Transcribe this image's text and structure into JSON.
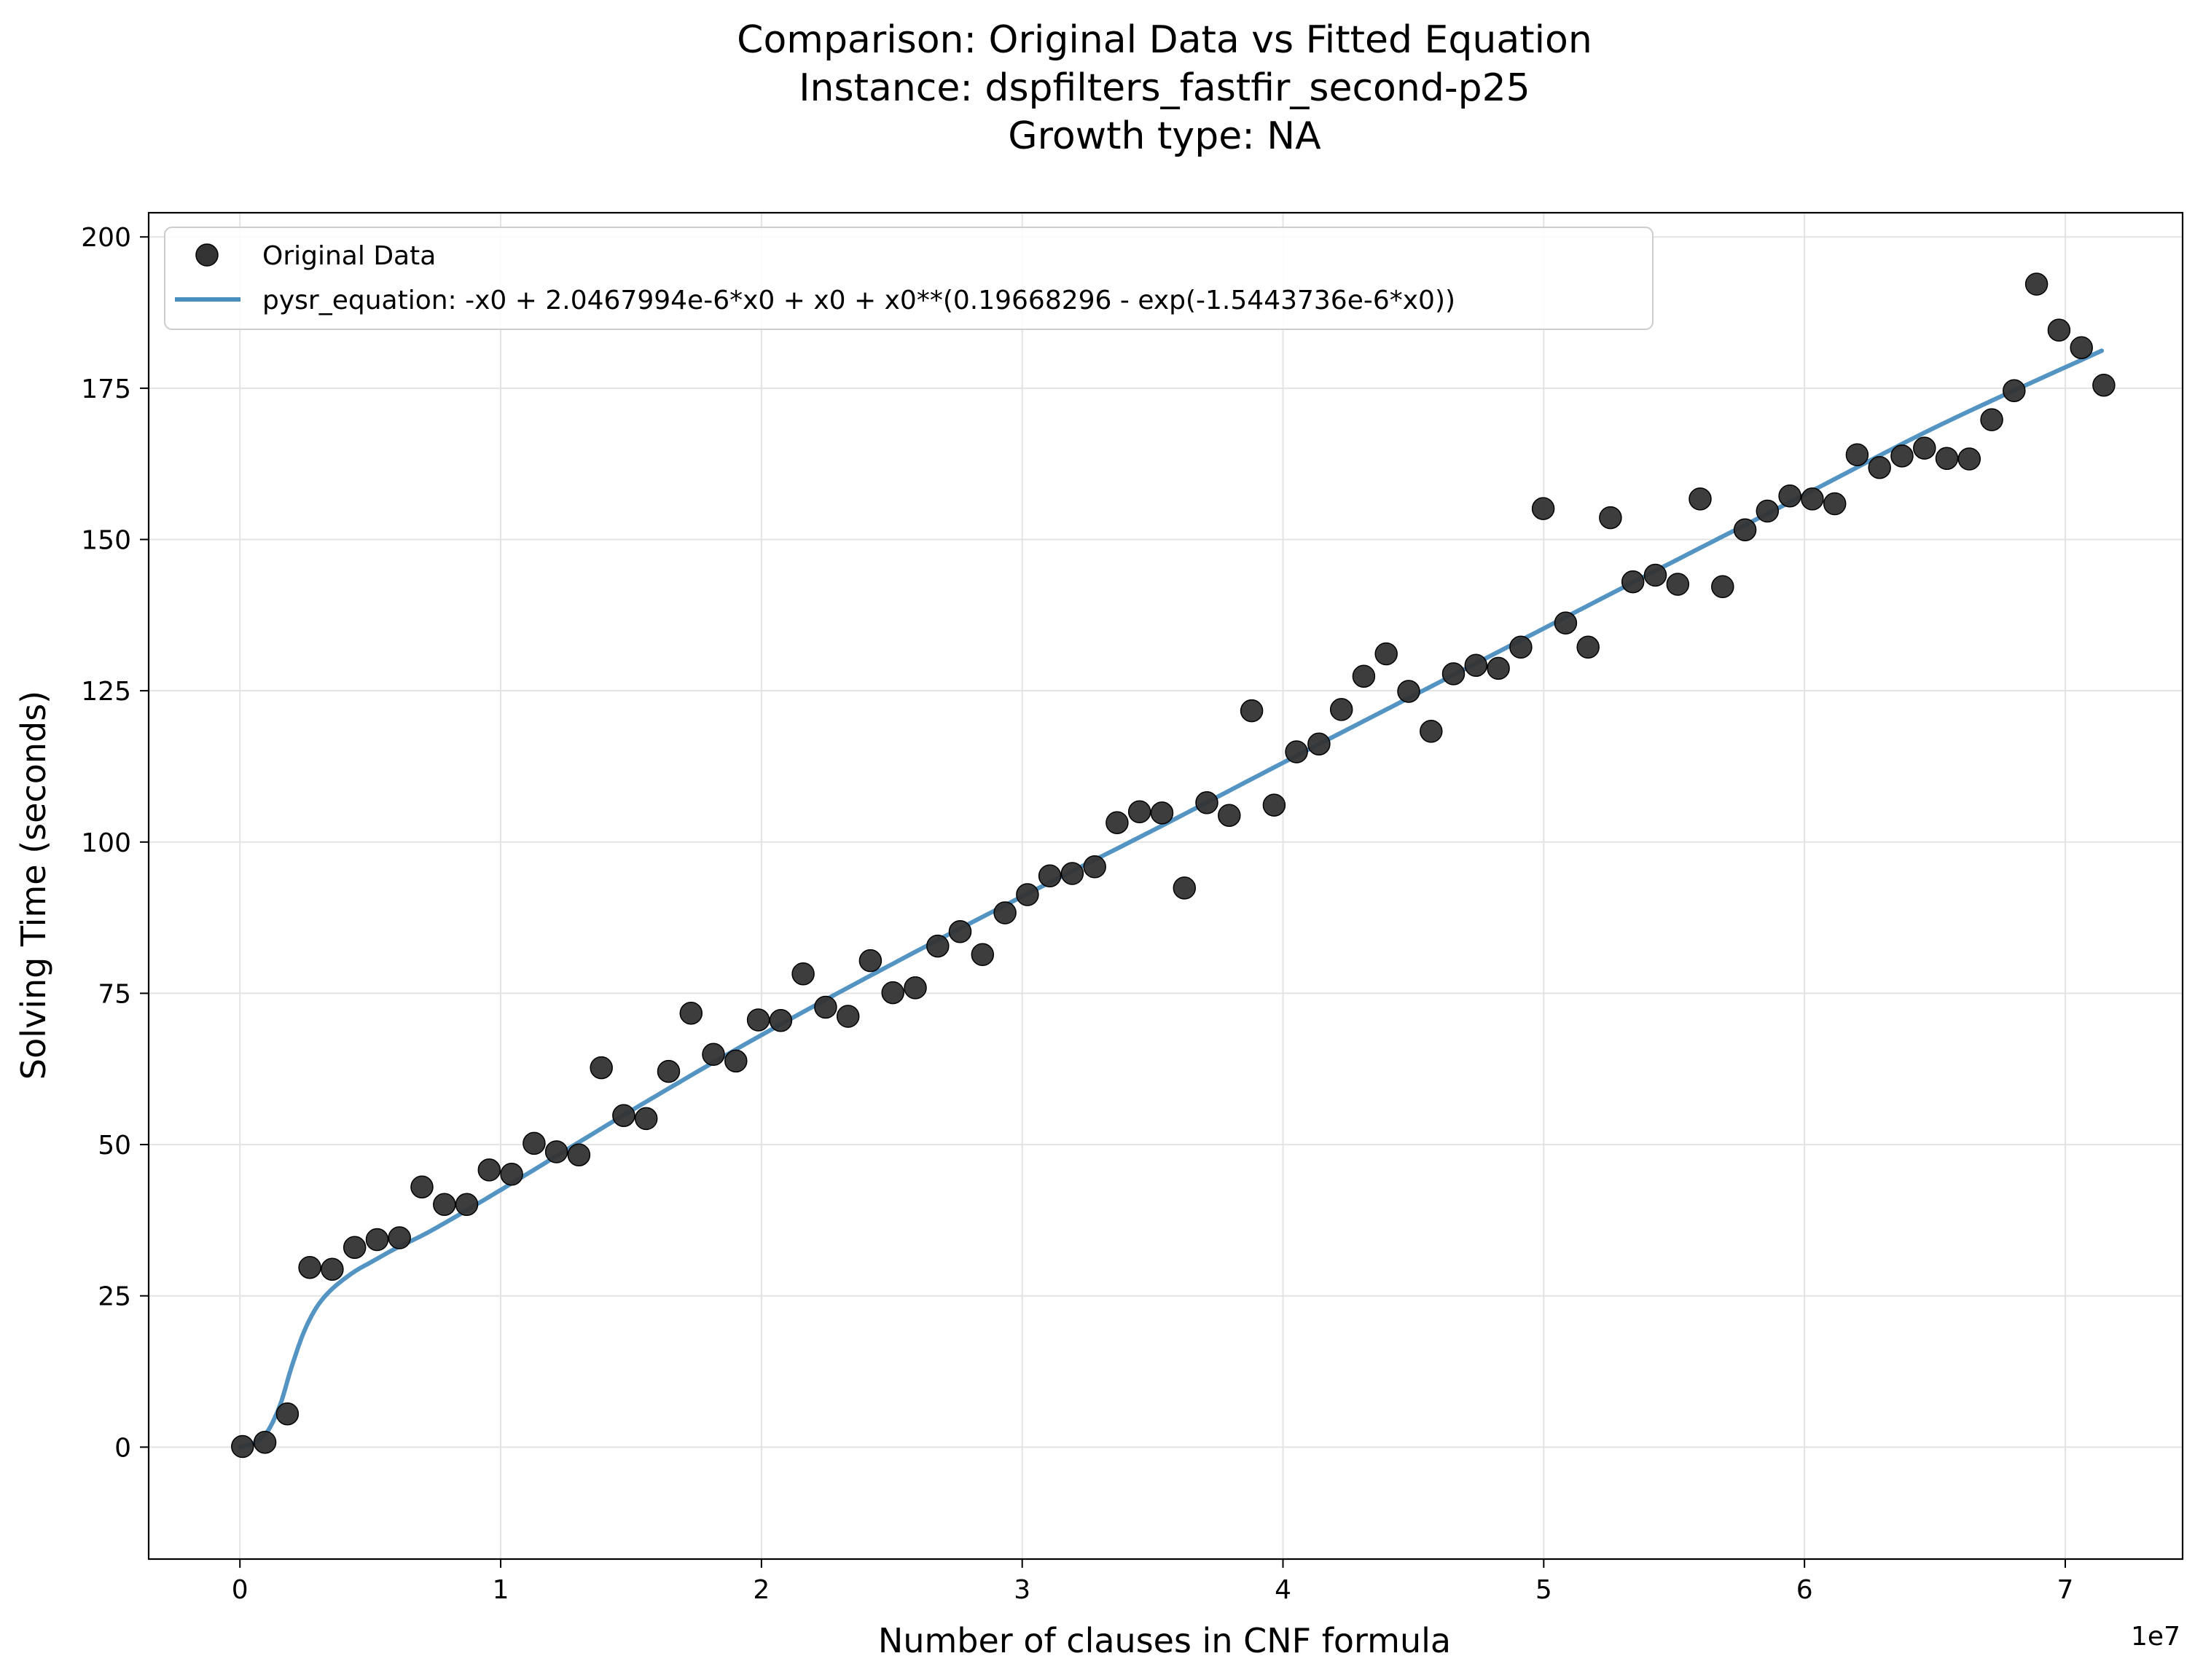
{
  "chart_data": {
    "type": "scatter",
    "title_lines": [
      "Comparison: Original Data vs Fitted Equation",
      "Instance: dspfilters_fastfir_second-p25",
      "Growth type: NA"
    ],
    "xlabel": "Number of clauses in CNF formula",
    "ylabel": "Solving Time (seconds)",
    "x_offset_label": "1e7",
    "xlim": [
      -3500000,
      74500000
    ],
    "ylim": [
      -18.5,
      204
    ],
    "x_ticks": [
      {
        "value": 0,
        "label": "0"
      },
      {
        "value": 10000000,
        "label": "1"
      },
      {
        "value": 20000000,
        "label": "2"
      },
      {
        "value": 30000000,
        "label": "3"
      },
      {
        "value": 40000000,
        "label": "4"
      },
      {
        "value": 50000000,
        "label": "5"
      },
      {
        "value": 60000000,
        "label": "6"
      },
      {
        "value": 70000000,
        "label": "7"
      }
    ],
    "y_ticks": [
      {
        "value": 0,
        "label": "0"
      },
      {
        "value": 25,
        "label": "25"
      },
      {
        "value": 50,
        "label": "50"
      },
      {
        "value": 75,
        "label": "75"
      },
      {
        "value": 100,
        "label": "100"
      },
      {
        "value": 125,
        "label": "125"
      },
      {
        "value": 150,
        "label": "150"
      },
      {
        "value": 175,
        "label": "175"
      },
      {
        "value": 200,
        "label": "200"
      }
    ],
    "grid": true,
    "legend_position": "upper-left",
    "series": [
      {
        "name": "Original Data",
        "kind": "scatter",
        "color": "#333333",
        "x": [
          100000,
          960000,
          1820000,
          2680000,
          3540000,
          4400000,
          5260000,
          6120000,
          6980000,
          7840000,
          8700000,
          9560000,
          10420000,
          11280000,
          12140000,
          13000000,
          13860000,
          14720000,
          15580000,
          16440000,
          17300000,
          18160000,
          19020000,
          19880000,
          20740000,
          21600000,
          22460000,
          23320000,
          24180000,
          25040000,
          25900000,
          26760000,
          27620000,
          28480000,
          29340000,
          30200000,
          31060000,
          31920000,
          32780000,
          33640000,
          34500000,
          35360000,
          36220000,
          37080000,
          37940000,
          38800000,
          39660000,
          40520000,
          41380000,
          42240000,
          43100000,
          43960000,
          44820000,
          45680000,
          46540000,
          47400000,
          48260000,
          49120000,
          49980000,
          50840000,
          51700000,
          52560000,
          53420000,
          54280000,
          55140000,
          56000000,
          56860000,
          57720000,
          58580000,
          59440000,
          60300000,
          61160000,
          62020000,
          62880000,
          63740000,
          64600000,
          65460000,
          66320000,
          67180000,
          68040000,
          68900000,
          69760000,
          70620000,
          71480000
        ],
        "y": [
          0.1,
          0.8,
          5.5,
          29.7,
          29.4,
          33.0,
          34.3,
          34.6,
          43.0,
          40.1,
          40.1,
          45.8,
          45.1,
          50.2,
          48.8,
          48.3,
          62.7,
          54.8,
          54.3,
          62.1,
          71.7,
          64.9,
          63.8,
          70.6,
          70.5,
          78.2,
          72.7,
          71.2,
          80.4,
          75.1,
          75.9,
          82.8,
          85.2,
          81.4,
          88.3,
          91.3,
          94.4,
          94.8,
          95.9,
          103.2,
          105.0,
          104.8,
          92.4,
          106.5,
          104.4,
          121.7,
          106.1,
          114.9,
          116.2,
          121.9,
          127.4,
          131.1,
          124.9,
          118.3,
          127.8,
          129.2,
          128.7,
          132.2,
          155.1,
          136.2,
          132.2,
          153.6,
          143.0,
          144.1,
          142.6,
          156.7,
          142.2,
          151.6,
          154.7,
          157.2,
          156.7,
          155.9,
          164.0,
          161.9,
          163.8,
          165.1,
          163.4,
          163.3,
          169.8,
          174.6,
          192.2,
          184.6,
          181.7,
          175.5
        ]
      },
      {
        "name": "pysr_equation: -x0 + 2.0467994e-6*x0 + x0 + x0**(0.19668296 - exp(-1.5443736e-6*x0))",
        "kind": "line",
        "color": "#4a8ec0",
        "x": [
          0,
          500000,
          1000000,
          1500000,
          2000000,
          2500000,
          3000000,
          3500000,
          4000000,
          4500000,
          5000000,
          6000000,
          7000000,
          8000000,
          10000000,
          15000000,
          20000000,
          25000000,
          30000000,
          35000000,
          40000000,
          45000000,
          50000000,
          55000000,
          60000000,
          65000000,
          71400000
        ],
        "y": [
          0,
          0.6,
          2.3,
          6.5,
          13.5,
          19.5,
          23.5,
          26.0,
          27.8,
          29.3,
          30.5,
          32.9,
          35.0,
          37.4,
          42.5,
          55.6,
          68.1,
          79.8,
          91.0,
          101.9,
          113.1,
          124.2,
          135.3,
          146.4,
          157.4,
          168.5,
          181.2
        ]
      }
    ]
  }
}
